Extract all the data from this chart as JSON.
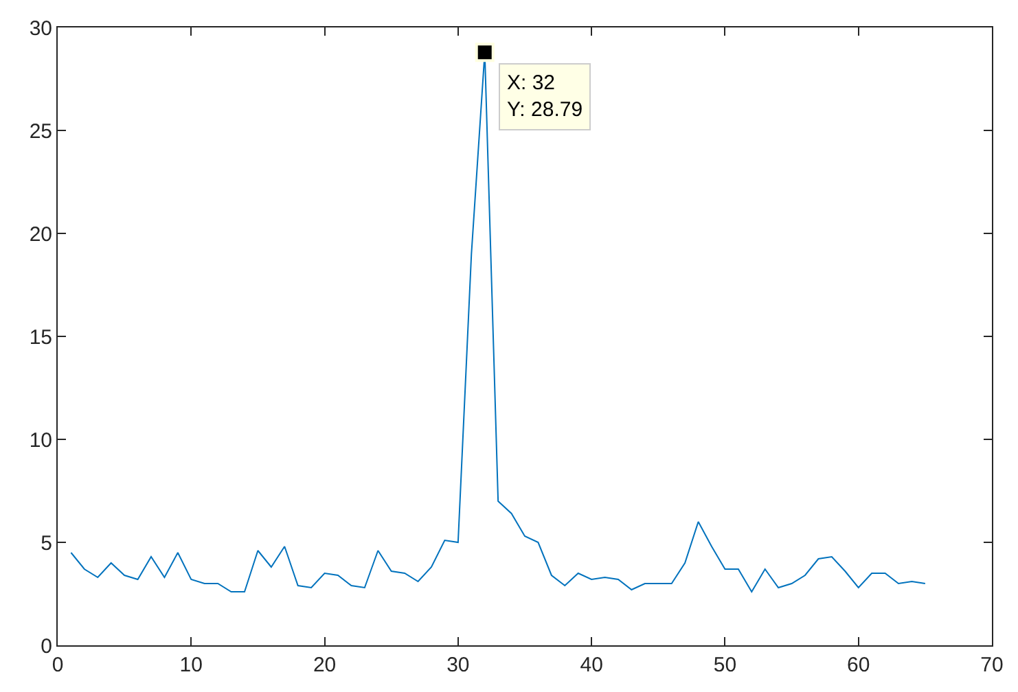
{
  "chart_data": {
    "type": "line",
    "x": [
      1,
      2,
      3,
      4,
      5,
      6,
      7,
      8,
      9,
      10,
      11,
      12,
      13,
      14,
      15,
      16,
      17,
      18,
      19,
      20,
      21,
      22,
      23,
      24,
      25,
      26,
      27,
      28,
      29,
      30,
      31,
      32,
      33,
      34,
      35,
      36,
      37,
      38,
      39,
      40,
      41,
      42,
      43,
      44,
      45,
      46,
      47,
      48,
      49,
      50,
      51,
      52,
      53,
      54,
      55,
      56,
      57,
      58,
      59,
      60,
      61,
      62,
      63,
      64,
      65
    ],
    "series": [
      {
        "color": "#0072bd",
        "values": [
          4.5,
          3.7,
          3.3,
          4.0,
          3.4,
          3.2,
          4.3,
          3.3,
          4.5,
          3.2,
          3.0,
          3.0,
          2.6,
          2.6,
          4.6,
          3.8,
          4.8,
          2.9,
          2.8,
          3.5,
          3.4,
          2.9,
          2.8,
          4.6,
          3.6,
          3.5,
          3.1,
          3.8,
          5.1,
          5.0,
          19,
          28.79,
          7.0,
          6.4,
          5.3,
          5.0,
          3.4,
          2.9,
          3.5,
          3.2,
          3.3,
          3.2,
          2.7,
          3.0,
          3.0,
          3.0,
          4.0,
          6.0,
          4.8,
          3.7,
          3.7,
          2.6,
          3.7,
          2.8,
          3.0,
          3.4,
          4.2,
          4.3,
          3.6,
          2.8,
          3.5,
          3.5,
          3.0,
          3.1,
          3.0
        ]
      }
    ],
    "xlim": [
      0,
      70
    ],
    "xticks": [
      0,
      10,
      20,
      30,
      40,
      50,
      60,
      70
    ],
    "ylim": [
      0,
      30
    ],
    "yticks": [
      0,
      5,
      10,
      15,
      20,
      25,
      30
    ],
    "legend": false,
    "marker": "none",
    "line_style": "solid",
    "annotations": [
      {
        "text": "X: 32\nY: 28.79",
        "x": 32,
        "y": 28.79
      }
    ]
  }
}
